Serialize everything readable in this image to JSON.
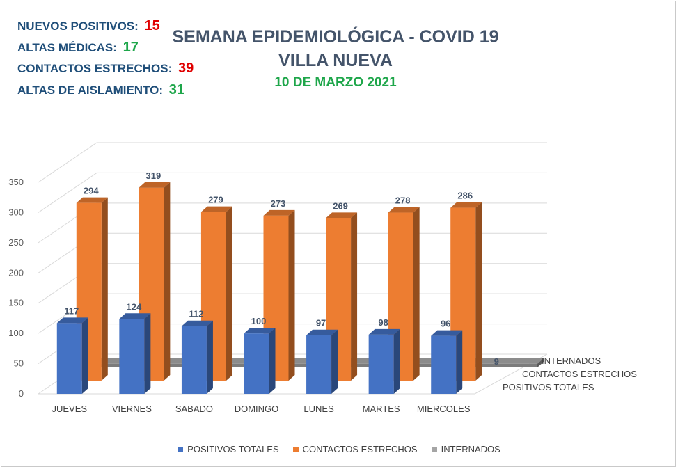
{
  "stats": [
    {
      "label": "NUEVOS POSITIVOS:",
      "value": "15",
      "color": "#e00000"
    },
    {
      "label": "ALTAS MÉDICAS:",
      "value": "17",
      "color": "#1ea64a"
    },
    {
      "label": "CONTACTOS ESTRECHOS:",
      "value": "39",
      "color": "#e00000"
    },
    {
      "label": "ALTAS DE AISLAMIENTO:",
      "value": "31",
      "color": "#1ea64a"
    }
  ],
  "titles": {
    "line1": "SEMANA EPIDEMIOLÓGICA - COVID 19",
    "line2": "VILLA NUEVA",
    "line3": "10 DE MARZO 2021"
  },
  "chart_data": {
    "type": "bar",
    "style": "3d-column",
    "categories": [
      "JUEVES",
      "VIERNES",
      "SABADO",
      "DOMINGO",
      "LUNES",
      "MARTES",
      "MIERCOLES"
    ],
    "series": [
      {
        "name": "POSITIVOS TOTALES",
        "values": [
          117,
          124,
          112,
          100,
          97,
          98,
          96
        ],
        "color": "#4472c4"
      },
      {
        "name": "CONTACTOS ESTRECHOS",
        "values": [
          294,
          319,
          279,
          273,
          269,
          278,
          286
        ],
        "color": "#ed7d31"
      },
      {
        "name": "INTERNADOS",
        "values": [
          6,
          8,
          9,
          9,
          9,
          9,
          9
        ],
        "color": "#a5a5a5"
      }
    ],
    "ylim": [
      0,
      350
    ],
    "yticks": [
      0,
      50,
      100,
      150,
      200,
      250,
      300,
      350
    ],
    "depth_axis_labels": [
      "POSITIVOS TOTALES",
      "CONTACTOS ESTRECHOS",
      "INTERNADOS"
    ],
    "grid": true,
    "legend": "bottom",
    "title": "",
    "xlabel": "",
    "ylabel": ""
  }
}
